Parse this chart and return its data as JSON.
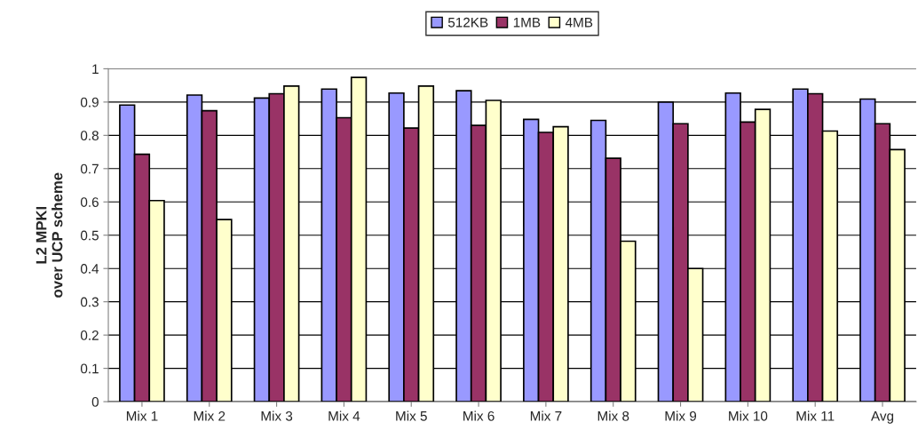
{
  "chart_data": {
    "type": "bar",
    "ylabel": "L2 MPKI\nover UCP scheme",
    "categories": [
      "Mix 1",
      "Mix 2",
      "Mix 3",
      "Mix 4",
      "Mix 5",
      "Mix 6",
      "Mix 7",
      "Mix 8",
      "Mix 9",
      "Mix 10",
      "Mix 11",
      "Avg"
    ],
    "series": [
      {
        "name": "512KB",
        "color": "#9999ff",
        "values": [
          0.891,
          0.921,
          0.912,
          0.939,
          0.927,
          0.934,
          0.848,
          0.845,
          0.9,
          0.927,
          0.939,
          0.909
        ]
      },
      {
        "name": "1MB",
        "color": "#993366",
        "values": [
          0.743,
          0.874,
          0.925,
          0.853,
          0.822,
          0.83,
          0.809,
          0.731,
          0.835,
          0.84,
          0.925,
          0.835
        ]
      },
      {
        "name": "4MB",
        "color": "#ffffcc",
        "values": [
          0.604,
          0.547,
          0.948,
          0.974,
          0.948,
          0.905,
          0.826,
          0.482,
          0.4,
          0.878,
          0.813,
          0.757
        ]
      }
    ],
    "ylim": [
      0,
      1
    ],
    "yticks": [
      0,
      0.1,
      0.2,
      0.3,
      0.4,
      0.5,
      0.6,
      0.7,
      0.8,
      0.9,
      1
    ],
    "grid": "y",
    "legend": "top"
  }
}
